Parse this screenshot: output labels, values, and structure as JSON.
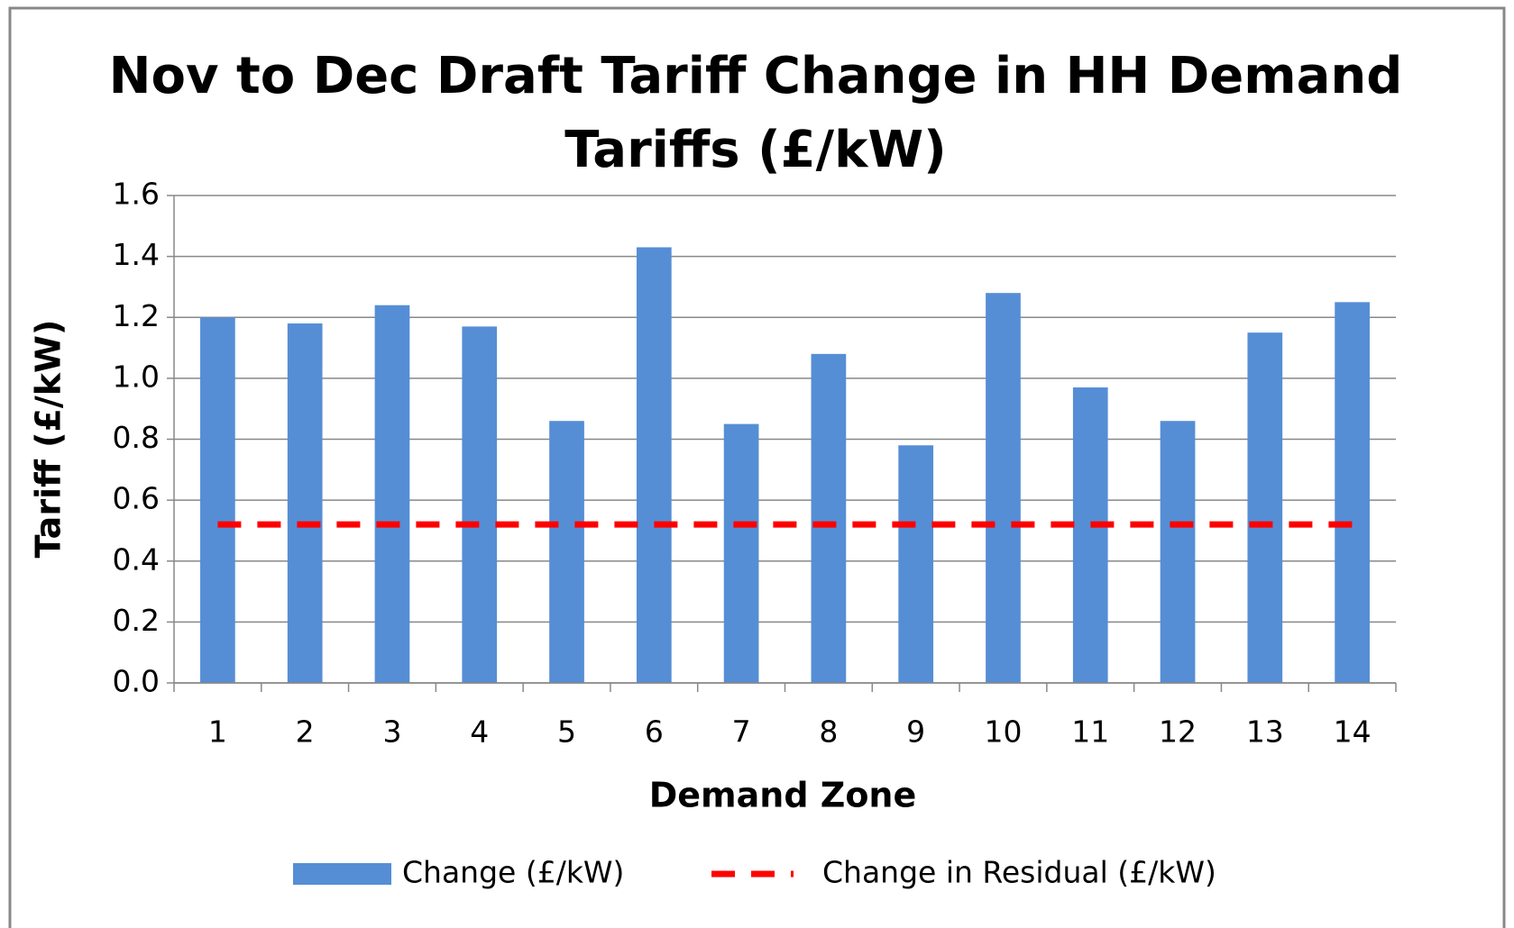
{
  "chart_data": {
    "type": "bar",
    "title": [
      "Nov to Dec Draft Tariff Change in HH Demand",
      "Tariffs (£/kW)"
    ],
    "x_label": "Demand Zone",
    "y_label": "Tariff (£/kW)",
    "categories": [
      "1",
      "2",
      "3",
      "4",
      "5",
      "6",
      "7",
      "8",
      "9",
      "10",
      "11",
      "12",
      "13",
      "14"
    ],
    "series": [
      {
        "name": "Change (£/kW)",
        "type": "bar",
        "color": "#558ed5",
        "values": [
          1.2,
          1.18,
          1.24,
          1.17,
          0.86,
          1.43,
          0.85,
          1.08,
          0.78,
          1.28,
          0.97,
          0.86,
          1.15,
          1.25
        ]
      },
      {
        "name": "Change in Residual (£/kW)",
        "type": "line",
        "dashed": true,
        "color": "#ff0000",
        "values": [
          0.52,
          0.52,
          0.52,
          0.52,
          0.52,
          0.52,
          0.52,
          0.52,
          0.52,
          0.52,
          0.52,
          0.52,
          0.52,
          0.52
        ]
      }
    ],
    "ylim": [
      0,
      1.6
    ],
    "yticks": [
      {
        "value": 0,
        "label": "0.0"
      },
      0.2,
      0.4,
      0.6,
      0.8,
      {
        "value": 1,
        "label": "1.0"
      },
      1.2,
      1.4,
      1.6
    ],
    "grid": true,
    "legend": "bottom"
  }
}
